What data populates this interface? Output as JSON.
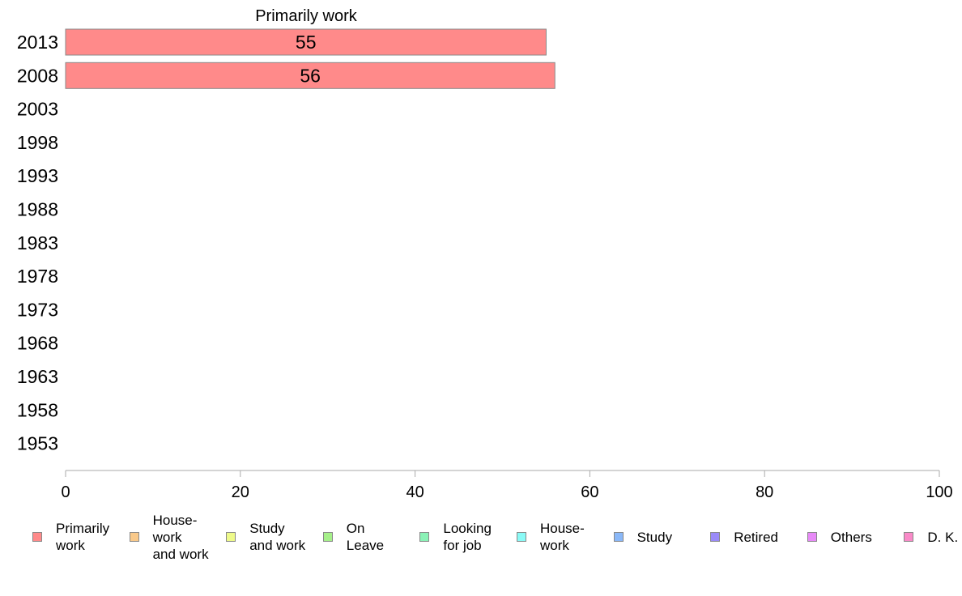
{
  "chart_data": {
    "type": "bar",
    "orientation": "horizontal",
    "title": "Primarily work",
    "categories": [
      "2013",
      "2008",
      "2003",
      "1998",
      "1993",
      "1988",
      "1983",
      "1978",
      "1973",
      "1968",
      "1963",
      "1958",
      "1953"
    ],
    "series": [
      {
        "name": "Primarily work",
        "values": [
          55,
          56,
          null,
          null,
          null,
          null,
          null,
          null,
          null,
          null,
          null,
          null,
          null
        ]
      }
    ],
    "data_labels": [
      "55",
      "56",
      "",
      "",
      "",
      "",
      "",
      "",
      "",
      "",
      "",
      "",
      ""
    ],
    "xlim": [
      0,
      100
    ],
    "x_ticks": [
      "0",
      "20",
      "40",
      "60",
      "80",
      "100"
    ],
    "xlabel": "",
    "ylabel": "",
    "grid": false,
    "legend_position": "bottom",
    "colors": {
      "bar": "#ff8a8a",
      "bar_border": "#888888",
      "axis": "#aaaaaa"
    }
  },
  "legend": [
    {
      "label": "Primarily\nwork",
      "color": "#ff8a8a"
    },
    {
      "label": "House-\nwork\nand work",
      "color": "#f9c98a"
    },
    {
      "label": "Study\nand work",
      "color": "#eefa8a"
    },
    {
      "label": "On\nLeave",
      "color": "#a6f08a"
    },
    {
      "label": "Looking\nfor job",
      "color": "#8af2b6"
    },
    {
      "label": "House-\nwork",
      "color": "#8afaf6"
    },
    {
      "label": "Study",
      "color": "#8ab8f8"
    },
    {
      "label": "Retired",
      "color": "#9a8af8"
    },
    {
      "label": "Others",
      "color": "#e88af8"
    },
    {
      "label": "D. K.",
      "color": "#f98ac8"
    }
  ]
}
